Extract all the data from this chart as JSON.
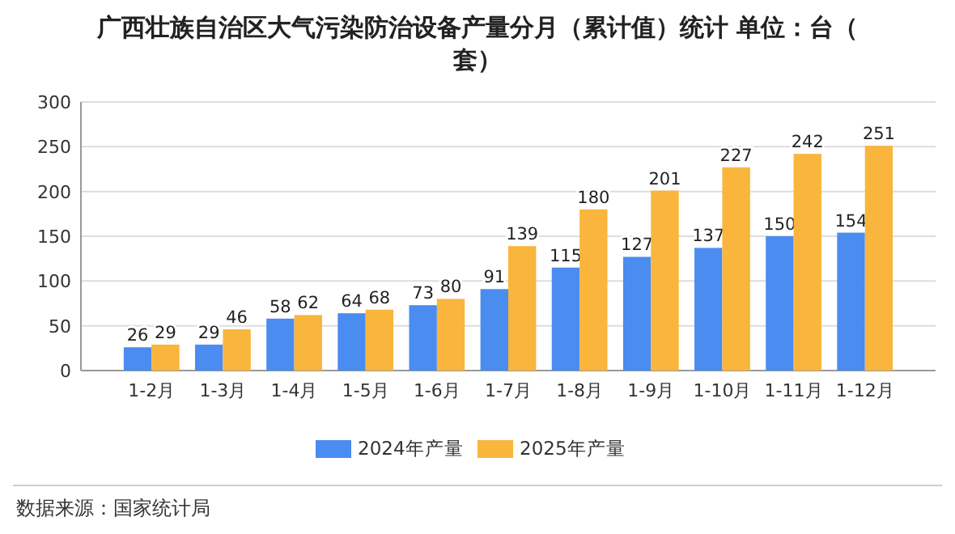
{
  "chart_data": {
    "type": "bar",
    "title": "广西壮族自治区大气污染防治设备产量分月（累计值）统计 单位：台（套）",
    "categories": [
      "1-2月",
      "1-3月",
      "1-4月",
      "1-5月",
      "1-6月",
      "1-7月",
      "1-8月",
      "1-9月",
      "1-10月",
      "1-11月",
      "1-12月"
    ],
    "series": [
      {
        "name": "2024年产量",
        "color": "#4a8cf0",
        "values": [
          26,
          29,
          58,
          64,
          73,
          91,
          115,
          127,
          137,
          150,
          154
        ]
      },
      {
        "name": "2025年产量",
        "color": "#f9b53c",
        "values": [
          29,
          46,
          62,
          68,
          80,
          139,
          180,
          201,
          227,
          242,
          251
        ]
      }
    ],
    "ylim": [
      0,
      300
    ],
    "yticks": [
      0,
      50,
      100,
      150,
      200,
      250,
      300
    ],
    "grid": "y",
    "legend": "bottom",
    "data_labels": true,
    "annotations": [
      "数据来源：国家统计局"
    ]
  }
}
